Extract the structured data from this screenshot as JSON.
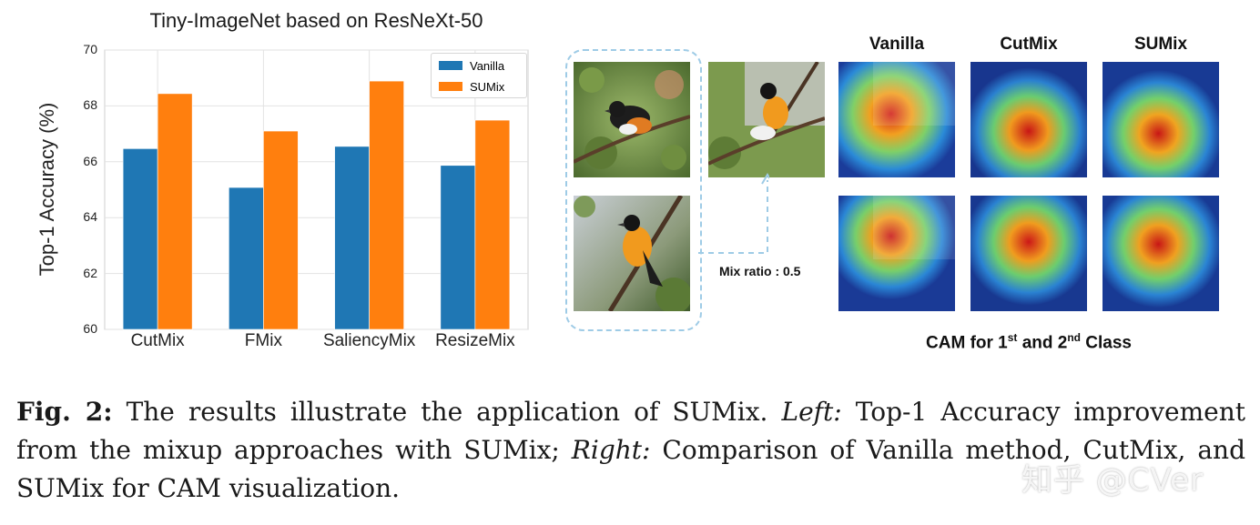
{
  "chart_data": {
    "type": "bar",
    "title": "Tiny-ImageNet based on ResNeXt-50",
    "xlabel": "",
    "ylabel": "Top-1 Accuracy (%)",
    "categories": [
      "CutMix",
      "FMix",
      "SaliencyMix",
      "ResizeMix"
    ],
    "series": [
      {
        "name": "Vanilla",
        "values": [
          66.47,
          65.08,
          66.55,
          65.87
        ],
        "color": "#1f77b4"
      },
      {
        "name": "SUMix",
        "values": [
          68.44,
          67.1,
          68.89,
          67.49
        ],
        "color": "#ff7f0e"
      }
    ],
    "ylim": [
      60,
      70
    ],
    "yticks": [
      "60",
      "62",
      "64",
      "66",
      "68",
      "70"
    ],
    "grid": true,
    "legend_position": "top-right"
  },
  "figure_right": {
    "column_headers": [
      "Vanilla",
      "CutMix",
      "SUMix"
    ],
    "mix_ratio_label": "Mix ratio : 0.5",
    "cam_caption_pre": "CAM for 1",
    "cam_caption_sup1": "st",
    "cam_caption_mid": " and 2",
    "cam_caption_sup2": "nd",
    "cam_caption_post": " Class"
  },
  "caption": {
    "label": "Fig. 2:",
    "text1": " The results illustrate the application of SUMix. ",
    "left_label": "Left:",
    "text2": " Top-1 Accuracy improvement from the mixup approaches with SUMix; ",
    "right_label": "Right:",
    "text3": " Comparison of Vanilla method, CutMix, and SUMix for CAM visualization."
  },
  "watermark": "知乎 @CVer"
}
